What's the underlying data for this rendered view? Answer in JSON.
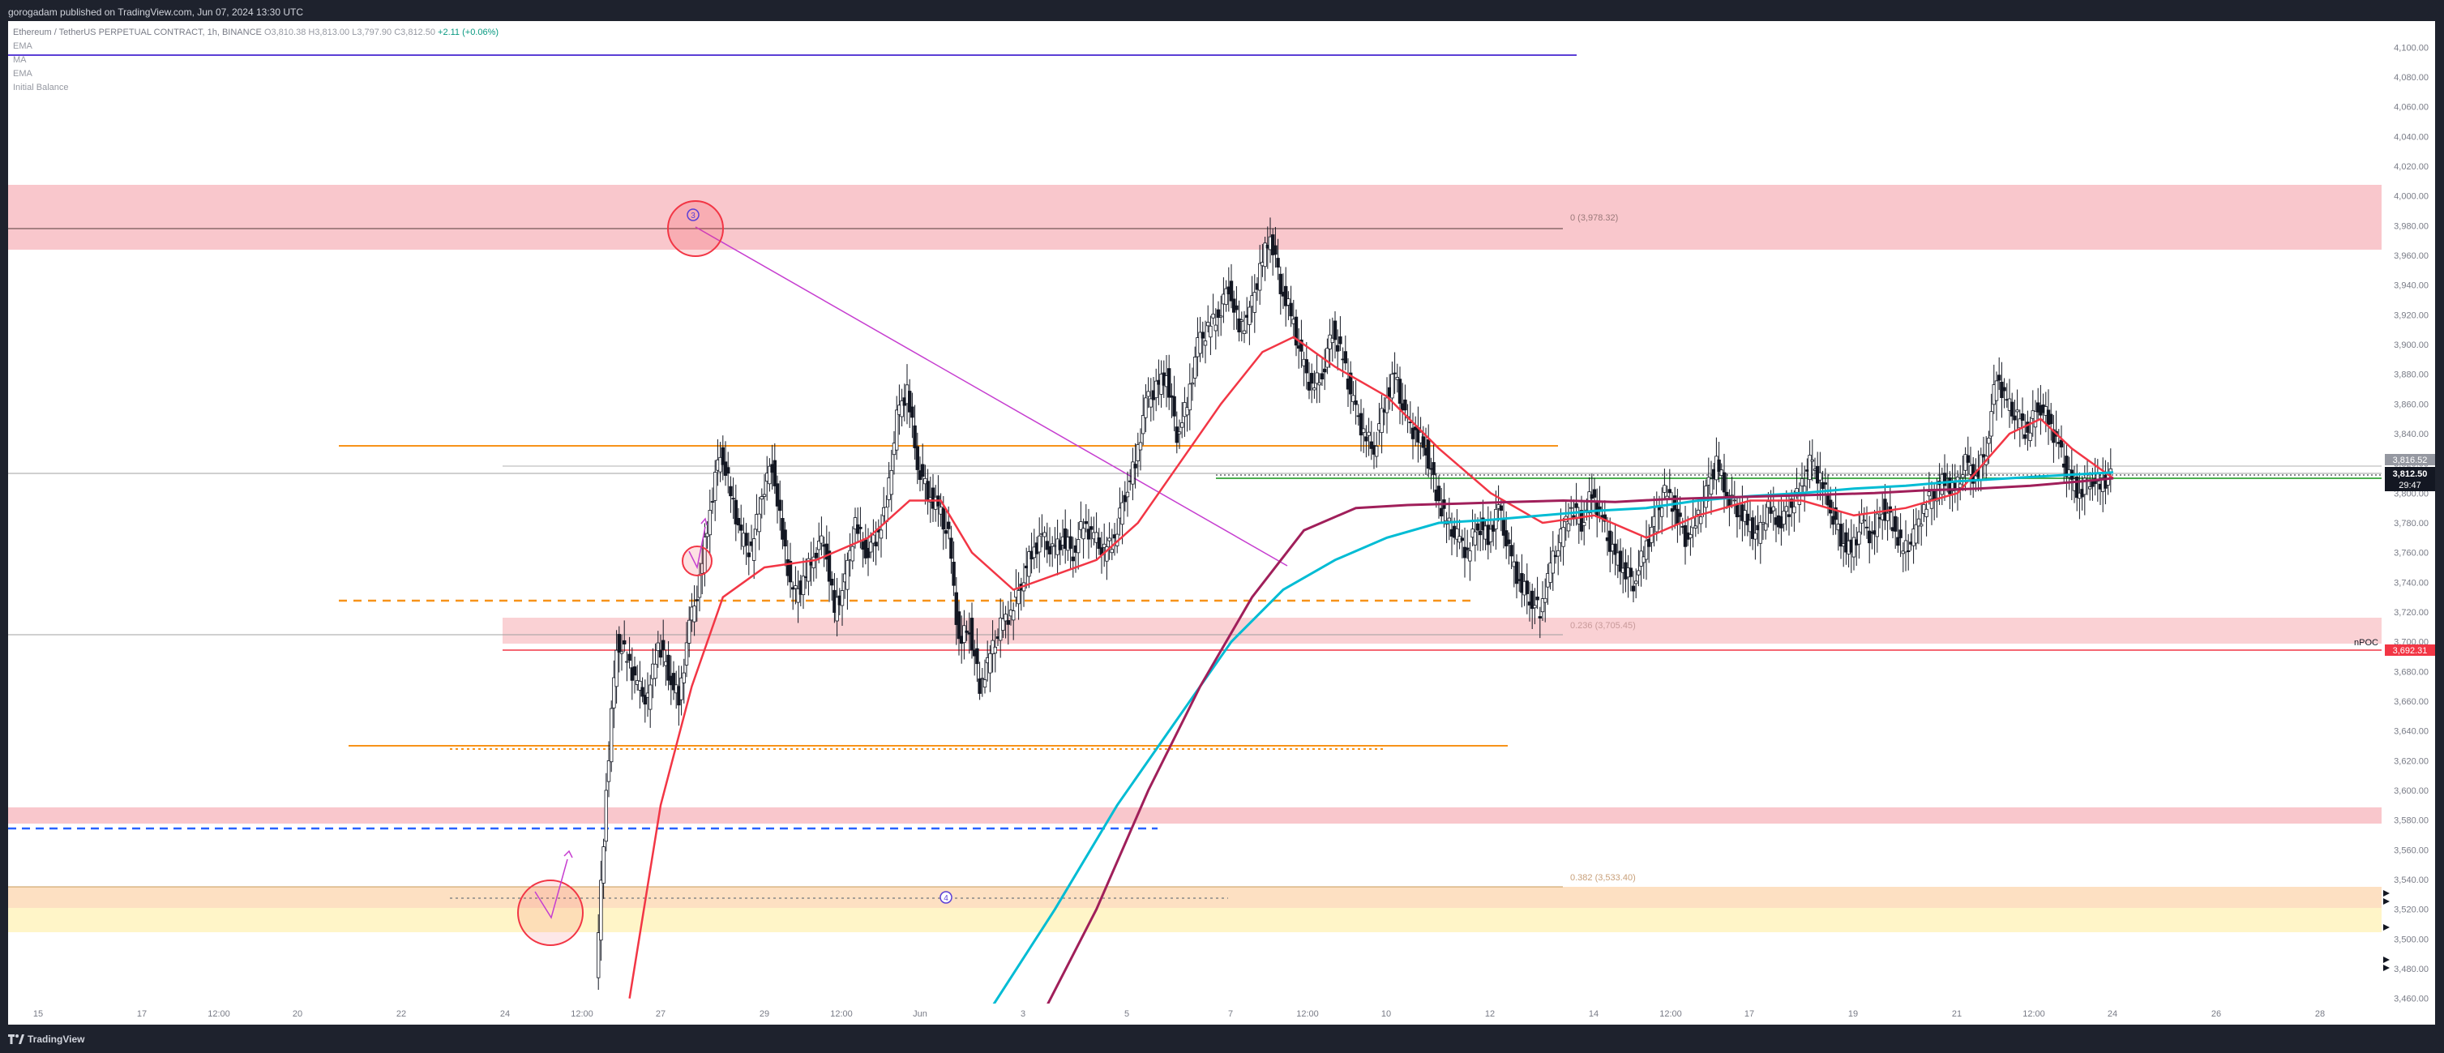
{
  "header": {
    "published": "gorogadam published on TradingView.com, Jun 07, 2024 13:30 UTC"
  },
  "legend": {
    "symbol": "Ethereum / TetherUS PERPETUAL CONTRACT, 1h, BINANCE",
    "open": "O3,810.38",
    "high": "H3,813.00",
    "low": "L3,797.90",
    "close": "C3,812.50",
    "change": "+2.11 (+0.06%)",
    "indicators": [
      "EMA",
      "MA",
      "EMA",
      "Initial Balance"
    ]
  },
  "price_axis": {
    "ticks": [
      "4,100.00",
      "4,080.00",
      "4,060.00",
      "4,040.00",
      "4,020.00",
      "4,000.00",
      "3,980.00",
      "3,960.00",
      "3,940.00",
      "3,920.00",
      "3,900.00",
      "3,880.00",
      "3,860.00",
      "3,840.00",
      "3,820.00",
      "3,800.00",
      "3,780.00",
      "3,760.00",
      "3,740.00",
      "3,720.00",
      "3,700.00",
      "3,680.00",
      "3,660.00",
      "3,640.00",
      "3,620.00",
      "3,600.00",
      "3,580.00",
      "3,560.00",
      "3,540.00",
      "3,520.00",
      "3,500.00",
      "3,480.00",
      "3,460.00"
    ],
    "badges": {
      "ref_price": "3,816.52",
      "last_price": "3,812.50",
      "countdown": "29:47",
      "npoc_label": "nPOC",
      "npoc_price": "3,692.31"
    }
  },
  "time_axis": {
    "ticks": [
      "15",
      "17",
      "12:00",
      "20",
      "22",
      "24",
      "12:00",
      "27",
      "29",
      "12:00",
      "Jun",
      "3",
      "5",
      "7",
      "12:00",
      "10",
      "12",
      "14",
      "12:00",
      "17",
      "19",
      "21",
      "12:00",
      "24",
      "26",
      "28"
    ]
  },
  "annotations": {
    "fib_0": "0 (3,978.32)",
    "fib_0236": "0.236 (3,705.45)",
    "fib_0382": "0.382 (3,533.40)",
    "marker_top": "3",
    "marker_bottom": "4"
  },
  "footer": {
    "brand": "TradingView"
  },
  "colors": {
    "bg": "#1e222d",
    "chart": "#ffffff",
    "orange": "#f7931a",
    "red_zone": "#f8c1c6",
    "ema_red": "#f23645",
    "ema_cyan": "#00bcd4",
    "ma_maroon": "#a01f5a",
    "last_price": "#131722",
    "green_line": "#4caf50",
    "npoc": "#f23645"
  },
  "chart_data": {
    "type": "candlestick",
    "symbol": "ETHUSDT.P",
    "timeframe": "1h",
    "ylim": [
      3450,
      4110
    ],
    "ohlc_last": {
      "open": 3810.38,
      "high": 3813.0,
      "low": 3797.9,
      "close": 3812.5
    },
    "levels": [
      {
        "price": 3978.32,
        "label": "0 (3,978.32)"
      },
      {
        "price": 3705.45,
        "label": "0.236 (3,705.45)"
      },
      {
        "price": 3533.4,
        "label": "0.382 (3,533.40)"
      },
      {
        "price": 3692.31,
        "label": "nPOC"
      }
    ],
    "close_path": [
      [
        20.4,
        3470
      ],
      [
        20.5,
        3600
      ],
      [
        20.6,
        3700
      ],
      [
        20.7,
        3690
      ],
      [
        20.8,
        3670
      ],
      [
        20.9,
        3660
      ],
      [
        21.0,
        3700
      ],
      [
        21.1,
        3680
      ],
      [
        21.2,
        3660
      ],
      [
        21.3,
        3710
      ],
      [
        21.4,
        3740
      ],
      [
        21.5,
        3790
      ],
      [
        21.6,
        3830
      ],
      [
        21.7,
        3800
      ],
      [
        21.8,
        3770
      ],
      [
        21.9,
        3760
      ],
      [
        22.0,
        3800
      ],
      [
        22.1,
        3820
      ],
      [
        22.2,
        3770
      ],
      [
        22.3,
        3730
      ],
      [
        22.4,
        3740
      ],
      [
        22.5,
        3760
      ],
      [
        22.6,
        3770
      ],
      [
        22.7,
        3720
      ],
      [
        22.8,
        3740
      ],
      [
        22.9,
        3780
      ],
      [
        23.0,
        3760
      ],
      [
        23.1,
        3770
      ],
      [
        23.2,
        3790
      ],
      [
        23.3,
        3850
      ],
      [
        23.4,
        3870
      ],
      [
        23.5,
        3820
      ],
      [
        23.6,
        3800
      ],
      [
        23.7,
        3790
      ],
      [
        23.8,
        3770
      ],
      [
        23.9,
        3700
      ],
      [
        24.0,
        3710
      ],
      [
        24.1,
        3670
      ],
      [
        24.2,
        3690
      ],
      [
        24.3,
        3710
      ],
      [
        24.4,
        3720
      ],
      [
        24.5,
        3740
      ],
      [
        24.6,
        3760
      ],
      [
        24.7,
        3770
      ],
      [
        24.8,
        3760
      ],
      [
        24.9,
        3770
      ],
      [
        25.0,
        3760
      ],
      [
        25.1,
        3780
      ],
      [
        25.2,
        3770
      ],
      [
        25.3,
        3760
      ],
      [
        25.4,
        3770
      ],
      [
        25.5,
        3800
      ],
      [
        25.6,
        3820
      ],
      [
        25.7,
        3860
      ],
      [
        25.8,
        3870
      ],
      [
        25.9,
        3880
      ],
      [
        26.0,
        3840
      ],
      [
        26.1,
        3860
      ],
      [
        26.2,
        3900
      ],
      [
        26.3,
        3910
      ],
      [
        26.4,
        3920
      ],
      [
        26.5,
        3940
      ],
      [
        26.6,
        3910
      ],
      [
        26.7,
        3920
      ],
      [
        26.8,
        3950
      ],
      [
        26.9,
        3975
      ],
      [
        27.0,
        3940
      ],
      [
        27.1,
        3920
      ],
      [
        27.2,
        3890
      ],
      [
        27.3,
        3870
      ],
      [
        27.4,
        3880
      ],
      [
        27.5,
        3910
      ],
      [
        27.6,
        3890
      ],
      [
        27.7,
        3860
      ],
      [
        27.8,
        3840
      ],
      [
        27.9,
        3830
      ],
      [
        28.0,
        3860
      ],
      [
        28.1,
        3880
      ],
      [
        28.2,
        3850
      ],
      [
        28.3,
        3840
      ],
      [
        28.4,
        3830
      ],
      [
        28.5,
        3800
      ],
      [
        28.6,
        3780
      ],
      [
        28.7,
        3770
      ],
      [
        28.8,
        3760
      ],
      [
        28.9,
        3780
      ],
      [
        29.0,
        3770
      ],
      [
        29.1,
        3790
      ],
      [
        29.2,
        3760
      ],
      [
        29.3,
        3740
      ],
      [
        29.4,
        3730
      ],
      [
        29.5,
        3720
      ],
      [
        29.6,
        3750
      ],
      [
        29.7,
        3770
      ],
      [
        29.8,
        3790
      ],
      [
        29.9,
        3780
      ],
      [
        30.0,
        3800
      ],
      [
        30.1,
        3780
      ],
      [
        30.2,
        3760
      ],
      [
        30.3,
        3750
      ],
      [
        30.4,
        3740
      ],
      [
        30.5,
        3760
      ],
      [
        30.6,
        3780
      ],
      [
        30.7,
        3800
      ],
      [
        30.8,
        3790
      ],
      [
        30.9,
        3770
      ],
      [
        31.0,
        3780
      ],
      [
        31.1,
        3800
      ],
      [
        31.2,
        3820
      ],
      [
        31.3,
        3800
      ],
      [
        31.4,
        3790
      ],
      [
        31.5,
        3780
      ],
      [
        31.6,
        3770
      ],
      [
        31.7,
        3790
      ],
      [
        31.8,
        3780
      ],
      [
        31.9,
        3790
      ],
      [
        32.0,
        3800
      ],
      [
        32.1,
        3820
      ],
      [
        32.2,
        3810
      ],
      [
        32.3,
        3790
      ],
      [
        32.4,
        3770
      ],
      [
        32.5,
        3760
      ],
      [
        32.6,
        3780
      ],
      [
        32.7,
        3770
      ],
      [
        32.8,
        3790
      ],
      [
        32.9,
        3780
      ],
      [
        33.0,
        3760
      ],
      [
        33.1,
        3770
      ],
      [
        33.2,
        3790
      ],
      [
        33.3,
        3800
      ],
      [
        33.4,
        3810
      ],
      [
        33.5,
        3800
      ],
      [
        33.6,
        3820
      ],
      [
        33.7,
        3810
      ],
      [
        33.8,
        3830
      ],
      [
        33.9,
        3880
      ],
      [
        34.0,
        3860
      ],
      [
        34.1,
        3850
      ],
      [
        34.2,
        3840
      ],
      [
        34.3,
        3860
      ],
      [
        34.4,
        3850
      ],
      [
        34.5,
        3830
      ],
      [
        34.6,
        3810
      ],
      [
        34.7,
        3800
      ],
      [
        34.8,
        3810
      ],
      [
        34.9,
        3806
      ],
      [
        35.0,
        3812.5
      ]
    ],
    "ema_red": [
      [
        20.7,
        3460
      ],
      [
        21.0,
        3590
      ],
      [
        21.3,
        3670
      ],
      [
        21.6,
        3730
      ],
      [
        22.0,
        3750
      ],
      [
        22.5,
        3755
      ],
      [
        23.0,
        3770
      ],
      [
        23.4,
        3795
      ],
      [
        23.7,
        3795
      ],
      [
        24.0,
        3760
      ],
      [
        24.4,
        3735
      ],
      [
        24.8,
        3745
      ],
      [
        25.2,
        3755
      ],
      [
        25.6,
        3780
      ],
      [
        26.0,
        3820
      ],
      [
        26.4,
        3860
      ],
      [
        26.8,
        3895
      ],
      [
        27.1,
        3905
      ],
      [
        27.5,
        3885
      ],
      [
        28.0,
        3865
      ],
      [
        28.5,
        3830
      ],
      [
        29.0,
        3800
      ],
      [
        29.5,
        3780
      ],
      [
        30.0,
        3785
      ],
      [
        30.5,
        3770
      ],
      [
        31.0,
        3785
      ],
      [
        31.5,
        3795
      ],
      [
        32.0,
        3795
      ],
      [
        32.5,
        3785
      ],
      [
        33.0,
        3790
      ],
      [
        33.5,
        3800
      ],
      [
        34.0,
        3840
      ],
      [
        34.3,
        3850
      ],
      [
        34.6,
        3830
      ],
      [
        35.0,
        3810
      ]
    ],
    "ema_cyan": [
      [
        24.2,
        3455
      ],
      [
        24.8,
        3520
      ],
      [
        25.4,
        3590
      ],
      [
        26.0,
        3650
      ],
      [
        26.5,
        3700
      ],
      [
        27.0,
        3735
      ],
      [
        27.5,
        3755
      ],
      [
        28.0,
        3770
      ],
      [
        28.5,
        3780
      ],
      [
        29.0,
        3782
      ],
      [
        29.5,
        3785
      ],
      [
        30.0,
        3788
      ],
      [
        30.5,
        3790
      ],
      [
        31.0,
        3795
      ],
      [
        31.5,
        3798
      ],
      [
        32.0,
        3800
      ],
      [
        32.5,
        3803
      ],
      [
        33.0,
        3805
      ],
      [
        33.5,
        3808
      ],
      [
        34.0,
        3810
      ],
      [
        34.5,
        3812
      ],
      [
        35.0,
        3814
      ]
    ],
    "ma_maroon": [
      [
        24.7,
        3452
      ],
      [
        25.2,
        3520
      ],
      [
        25.7,
        3600
      ],
      [
        26.2,
        3670
      ],
      [
        26.7,
        3730
      ],
      [
        27.2,
        3775
      ],
      [
        27.7,
        3790
      ],
      [
        28.2,
        3792
      ],
      [
        28.7,
        3793
      ],
      [
        29.2,
        3794
      ],
      [
        29.7,
        3795
      ],
      [
        30.2,
        3794
      ],
      [
        30.7,
        3796
      ],
      [
        31.2,
        3797
      ],
      [
        31.7,
        3798
      ],
      [
        32.2,
        3799
      ],
      [
        32.7,
        3800
      ],
      [
        33.2,
        3802
      ],
      [
        33.7,
        3803
      ],
      [
        34.2,
        3805
      ],
      [
        34.7,
        3808
      ],
      [
        35.0,
        3810
      ]
    ]
  }
}
